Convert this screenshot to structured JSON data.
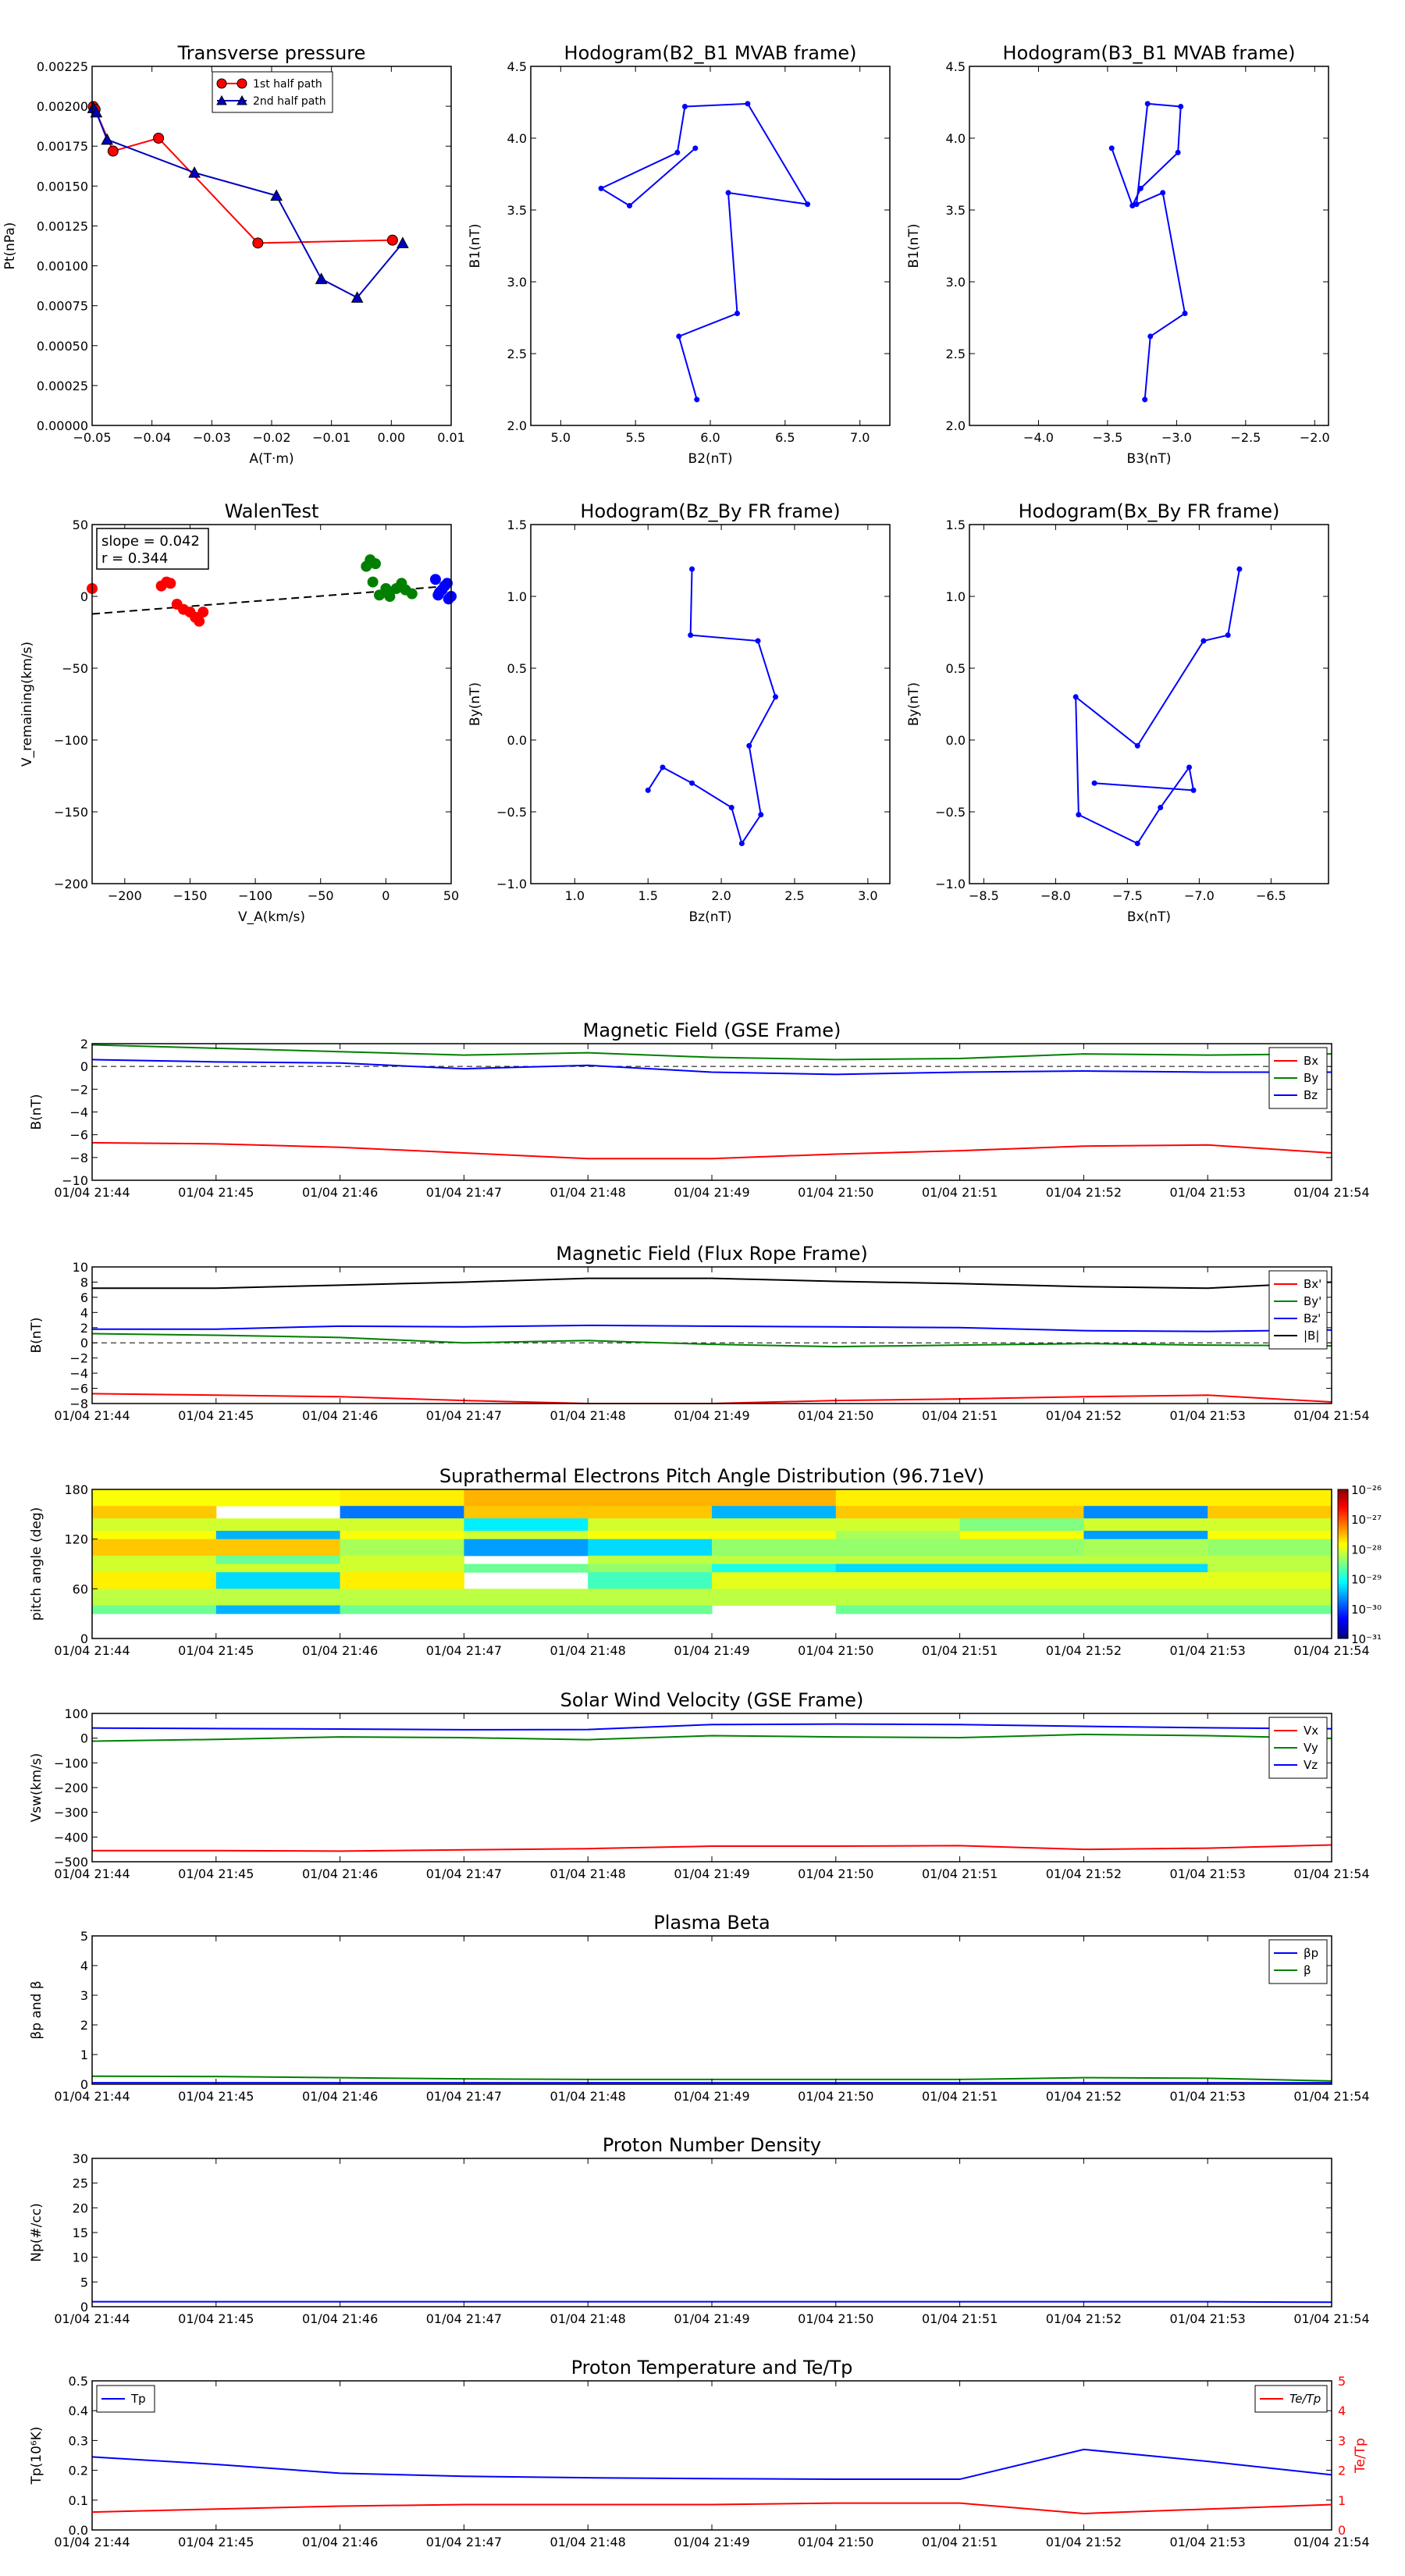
{
  "chart_data": [
    {
      "id": "tp",
      "type": "line",
      "title": "Transverse pressure",
      "xlabel": "A(T·m)",
      "ylabel": "Pt(nPa)",
      "xlim": [
        -0.05,
        0.01
      ],
      "ylim": [
        0,
        0.0025
      ],
      "xticks": [
        "−0.05",
        "−0.04",
        "−0.03",
        "−0.02",
        "−0.01",
        "0.00",
        "0.01"
      ],
      "yticks": [
        "0.00000",
        "0.00025",
        "0.00050",
        "0.00075",
        "0.00100",
        "0.00125",
        "0.00150",
        "0.00175",
        "0.00200",
        "0.00225"
      ],
      "legend_position": "upper-center",
      "series": [
        {
          "name": "1st half path",
          "color": "#ff0000",
          "marker": "circle",
          "x": [
            -0.0498,
            -0.0495,
            -0.0465,
            -0.0389,
            -0.0223,
            0.0002
          ],
          "y": [
            0.00222,
            0.0022,
            0.00191,
            0.002,
            0.00127,
            0.00129
          ]
        },
        {
          "name": "2nd half path",
          "color": "#0000bf",
          "marker": "triangle",
          "x": [
            -0.0498,
            -0.0493,
            -0.0475,
            -0.0329,
            -0.0192,
            -0.0117,
            -0.0057,
            0.0019
          ],
          "y": [
            0.00221,
            0.00218,
            0.00199,
            0.00176,
            0.0016,
            0.00102,
            0.00089,
            0.00127
          ]
        }
      ]
    },
    {
      "id": "h23",
      "type": "line",
      "title": "Hodogram(B2_B1 MVAB frame)",
      "xlabel": "B2(nT)",
      "ylabel": "B1(nT)",
      "xlim": [
        4.8,
        7.2
      ],
      "ylim": [
        2.0,
        4.5
      ],
      "xticks": [
        "5.0",
        "5.5",
        "6.0",
        "6.5",
        "7.0"
      ],
      "yticks": [
        "2.0",
        "2.5",
        "3.0",
        "3.5",
        "4.0",
        "4.5"
      ],
      "series": [
        {
          "color": "#0000ff",
          "x": [
            5.91,
            5.79,
            6.18,
            6.12,
            6.65,
            6.25,
            5.83,
            5.78,
            5.27,
            5.46,
            5.9
          ],
          "y": [
            2.18,
            2.62,
            2.78,
            3.62,
            3.54,
            4.24,
            4.22,
            3.9,
            3.65,
            3.53,
            3.93
          ]
        }
      ]
    },
    {
      "id": "h13",
      "type": "line",
      "title": "Hodogram(B3_B1 MVAB frame)",
      "xlabel": "B3(nT)",
      "ylabel": "B1(nT)",
      "xlim": [
        -4.5,
        -1.9
      ],
      "ylim": [
        2.0,
        4.5
      ],
      "xticks": [
        "−4.0",
        "−3.5",
        "−3.0",
        "−2.5",
        "−2.0"
      ],
      "yticks": [
        "2.0",
        "2.5",
        "3.0",
        "3.5",
        "4.0",
        "4.5"
      ],
      "series": [
        {
          "color": "#0000ff",
          "x": [
            -3.23,
            -3.19,
            -2.94,
            -3.1,
            -3.29,
            -3.21,
            -2.97,
            -2.99,
            -3.26,
            -3.32,
            -3.47
          ],
          "y": [
            2.18,
            2.62,
            2.78,
            3.62,
            3.54,
            4.24,
            4.22,
            3.9,
            3.65,
            3.53,
            3.93
          ]
        }
      ]
    },
    {
      "id": "walen",
      "type": "scatter",
      "title": "WalenTest",
      "xlabel": "V_A(km/s)",
      "ylabel": "V_remaining(km/s)",
      "xlim": [
        -225,
        50
      ],
      "ylim": [
        -225,
        50
      ],
      "xticks": [
        "−200",
        "−150",
        "−100",
        "−50",
        "0",
        "50"
      ],
      "yticks": [
        "−200",
        "−150",
        "−100",
        "−50",
        "0",
        "50"
      ],
      "annotations": [
        "slope = 0.042",
        "r = 0.344"
      ],
      "fit": {
        "slope": 0.042,
        "intercept": -1
      },
      "series": [
        {
          "color": "#ff0000",
          "x": [
            -225,
            -172,
            -168,
            -165,
            -160,
            -155,
            -150,
            -146,
            -143,
            -140
          ],
          "y": [
            1,
            3,
            6,
            5,
            -11,
            -15,
            -17,
            -21,
            -24,
            -17
          ]
        },
        {
          "color": "#008000",
          "x": [
            -15,
            -12,
            -8,
            -10,
            -5,
            0,
            3,
            8,
            12,
            15,
            20
          ],
          "y": [
            18,
            23,
            20,
            6,
            -4,
            1,
            -5,
            1,
            5,
            0,
            -3
          ]
        },
        {
          "color": "#0000ff",
          "x": [
            38,
            41,
            45,
            48,
            40,
            47,
            43,
            50
          ],
          "y": [
            8,
            -2,
            3,
            -7,
            -4,
            5,
            0,
            -5
          ]
        }
      ]
    },
    {
      "id": "fr_zy",
      "type": "line",
      "title": "Hodogram(Bz_By FR frame)",
      "xlabel": "Bz(nT)",
      "ylabel": "By(nT)",
      "xlim": [
        0.7,
        3.15
      ],
      "ylim": [
        -1.0,
        1.5
      ],
      "xticks": [
        "1.0",
        "1.5",
        "2.0",
        "2.5",
        "3.0"
      ],
      "yticks": [
        "−1.0",
        "−0.5",
        "0.0",
        "0.5",
        "1.0",
        "1.5"
      ],
      "series": [
        {
          "color": "#0000ff",
          "x": [
            1.8,
            1.79,
            2.25,
            2.37,
            2.19,
            2.27,
            2.14,
            2.07,
            1.8,
            1.6,
            1.5
          ],
          "y": [
            1.19,
            0.73,
            0.69,
            0.3,
            -0.04,
            -0.52,
            -0.72,
            -0.47,
            -0.3,
            -0.19,
            -0.35
          ]
        }
      ]
    },
    {
      "id": "fr_xy",
      "type": "line",
      "title": "Hodogram(Bx_By FR frame)",
      "xlabel": "Bx(nT)",
      "ylabel": "By(nT)",
      "xlim": [
        -8.6,
        -6.1
      ],
      "ylim": [
        -1.0,
        1.5
      ],
      "xticks": [
        "−8.5",
        "−8.0",
        "−7.5",
        "−7.0",
        "−6.5"
      ],
      "yticks": [
        "−1.0",
        "−0.5",
        "0.0",
        "0.5",
        "1.0",
        "1.5"
      ],
      "series": [
        {
          "color": "#0000ff",
          "x": [
            -6.72,
            -6.8,
            -6.97,
            -7.43,
            -7.86,
            -7.84,
            -7.43,
            -7.27,
            -7.07,
            -7.04,
            -7.73
          ],
          "y": [
            1.19,
            0.73,
            0.69,
            -0.04,
            0.3,
            -0.52,
            -0.72,
            -0.47,
            -0.19,
            -0.35,
            -0.3
          ]
        }
      ]
    },
    {
      "id": "mf",
      "type": "line",
      "title": "Magnetic Field (GSE Frame)",
      "xlabel": "",
      "ylabel": "B(nT)",
      "ylim": [
        -10,
        2
      ],
      "yticks": [
        "−10",
        "−8",
        "−6",
        "−4",
        "−2",
        "0",
        "2"
      ],
      "zero_line": true,
      "legend_position": "right",
      "series": [
        {
          "name": "Bx",
          "color": "#ff0000",
          "values": [
            -6.7,
            -6.8,
            -7.1,
            -7.6,
            -8.1,
            -8.1,
            -7.7,
            -7.4,
            -7.0,
            -6.9,
            -7.6
          ]
        },
        {
          "name": "By",
          "color": "#008000",
          "values": [
            1.9,
            1.6,
            1.3,
            1.0,
            1.2,
            0.8,
            0.6,
            0.7,
            1.1,
            1.0,
            1.1
          ]
        },
        {
          "name": "Bz",
          "color": "#0000ff",
          "values": [
            0.6,
            0.4,
            0.3,
            -0.2,
            0.1,
            -0.5,
            -0.7,
            -0.5,
            -0.4,
            -0.5,
            -0.5
          ]
        }
      ]
    },
    {
      "id": "mffr",
      "type": "line",
      "title": "Magnetic Field (Flux Rope Frame)",
      "xlabel": "",
      "ylabel": "B(nT)",
      "ylim": [
        -8,
        10
      ],
      "yticks": [
        "−8",
        "−6",
        "−4",
        "−2",
        "0",
        "2",
        "4",
        "6",
        "8",
        "10"
      ],
      "zero_line": true,
      "legend_position": "right",
      "series": [
        {
          "name": "Bx'",
          "color": "#ff0000",
          "values": [
            -6.7,
            -6.9,
            -7.1,
            -7.6,
            -8.0,
            -8.0,
            -7.6,
            -7.4,
            -7.1,
            -6.9,
            -7.8
          ]
        },
        {
          "name": "By'",
          "color": "#008000",
          "values": [
            1.2,
            1.0,
            0.7,
            0.0,
            0.3,
            -0.2,
            -0.5,
            -0.3,
            -0.1,
            -0.3,
            -0.4
          ]
        },
        {
          "name": "Bz'",
          "color": "#0000ff",
          "values": [
            1.8,
            1.8,
            2.2,
            2.1,
            2.3,
            2.2,
            2.1,
            2.0,
            1.6,
            1.5,
            1.7
          ]
        },
        {
          "name": "|B|",
          "color": "#000000",
          "values": [
            7.2,
            7.2,
            7.6,
            8.0,
            8.5,
            8.5,
            8.1,
            7.8,
            7.4,
            7.2,
            8.0
          ]
        }
      ]
    },
    {
      "id": "pad",
      "type": "heatmap",
      "title": "Suprathermal Electrons Pitch Angle Distribution (96.71eV)",
      "xlabel": "",
      "ylabel": "pitch angle (deg)",
      "ylim": [
        0,
        180
      ],
      "yticks": [
        "0",
        "60",
        "120",
        "180"
      ],
      "colorbar": {
        "ticks": [
          "10⁻³¹",
          "10⁻³⁰",
          "10⁻²⁹",
          "10⁻²⁸",
          "10⁻²⁷",
          "10⁻²⁶"
        ],
        "range": [
          -31,
          -26
        ]
      },
      "bin_edges": [
        30,
        40,
        60,
        80,
        90,
        100,
        120,
        130,
        145,
        160,
        180
      ],
      "rows_top_to_bottom": [
        [
          -27.9,
          -27.9,
          -27.8,
          -27.5,
          -27.5,
          -27.5,
          -27.8,
          -27.8,
          -27.8,
          -27.8
        ],
        [
          -27.6,
          null,
          -29.8,
          -27.6,
          -27.6,
          -29.5,
          -27.6,
          -27.6,
          -29.7,
          -27.6
        ],
        [
          -28.1,
          -28.1,
          -28.1,
          -29.2,
          -28.1,
          -28.1,
          -28.1,
          -28.5,
          -28.1,
          -28.1
        ],
        [
          -27.9,
          -29.5,
          -27.9,
          -28.1,
          -27.9,
          -27.9,
          -28.3,
          -27.9,
          -29.6,
          -27.9
        ],
        [
          -27.6,
          -27.6,
          -28.3,
          -29.6,
          -29.3,
          -28.4,
          -28.4,
          -28.4,
          -28.3,
          -28.4
        ],
        [
          -28.1,
          -28.6,
          -28.1,
          null,
          -28.2,
          -28.2,
          -28.2,
          -28.2,
          -28.2,
          -28.2
        ],
        [
          -28.1,
          -28.1,
          -28.1,
          -28.6,
          -28.4,
          -29.0,
          -29.3,
          -29.3,
          -29.3,
          -28.2
        ],
        [
          -27.8,
          -29.3,
          -27.8,
          null,
          -28.8,
          -28.0,
          -28.0,
          -28.0,
          -28.0,
          -28.0
        ],
        [
          -28.2,
          -28.2,
          -28.2,
          -28.2,
          -28.2,
          -28.2,
          -28.2,
          -28.2,
          -28.2,
          -28.2
        ],
        [
          -28.6,
          -29.5,
          -28.6,
          -28.6,
          -28.6,
          null,
          -28.6,
          -28.6,
          -28.6,
          -28.6
        ]
      ]
    },
    {
      "id": "sw",
      "type": "line",
      "title": "Solar Wind Velocity (GSE Frame)",
      "xlabel": "",
      "ylabel": "Vsw(km/s)",
      "ylim": [
        -500,
        100
      ],
      "yticks": [
        "−500",
        "−400",
        "−300",
        "−200",
        "−100",
        "0",
        "100"
      ],
      "legend_position": "right",
      "series": [
        {
          "name": "Vx",
          "color": "#ff0000",
          "values": [
            -455,
            -455,
            -457,
            -452,
            -447,
            -437,
            -437,
            -435,
            -450,
            -445,
            -432
          ]
        },
        {
          "name": "Vy",
          "color": "#008000",
          "values": [
            -12,
            -5,
            5,
            2,
            -6,
            10,
            5,
            2,
            15,
            10,
            -1
          ]
        },
        {
          "name": "Vz",
          "color": "#0000ff",
          "values": [
            41,
            39,
            37,
            34,
            35,
            55,
            57,
            55,
            48,
            42,
            38
          ]
        }
      ]
    },
    {
      "id": "beta",
      "type": "line",
      "title": "Plasma Beta",
      "xlabel": "",
      "ylabel": "βp and β",
      "ylim": [
        0,
        5
      ],
      "yticks": [
        "0",
        "1",
        "2",
        "3",
        "4",
        "5"
      ],
      "legend_position": "right",
      "series": [
        {
          "name": "βp",
          "color": "#0000ff",
          "values": [
            0.05,
            0.05,
            0.05,
            0.05,
            0.05,
            0.05,
            0.05,
            0.05,
            0.05,
            0.05,
            0.05
          ]
        },
        {
          "name": "β",
          "color": "#008000",
          "values": [
            0.27,
            0.26,
            0.22,
            0.18,
            0.16,
            0.16,
            0.16,
            0.16,
            0.22,
            0.2,
            0.11
          ]
        }
      ]
    },
    {
      "id": "np",
      "type": "line",
      "title": "Proton Number Density",
      "xlabel": "",
      "ylabel": "Np(#/cc)",
      "ylim": [
        0,
        30
      ],
      "yticks": [
        "0",
        "5",
        "10",
        "15",
        "20",
        "25",
        "30"
      ],
      "series": [
        {
          "name": "Np",
          "color": "#0000ff",
          "values": [
            1.0,
            1.0,
            1.0,
            1.0,
            1.0,
            1.0,
            1.0,
            1.0,
            1.0,
            1.0,
            0.9
          ]
        }
      ]
    },
    {
      "id": "tpx",
      "type": "line",
      "title": "Proton Temperature and Te/Tp",
      "xlabel": "",
      "ylabel": "Tp(10⁶K)",
      "ylabel_right": "Te/Tp",
      "ylim": [
        0,
        0.5
      ],
      "ylim_right": [
        0,
        5
      ],
      "yticks": [
        "0.0",
        "0.1",
        "0.2",
        "0.3",
        "0.4",
        "0.5"
      ],
      "yticks_right": [
        "0",
        "1",
        "2",
        "3",
        "4",
        "5"
      ],
      "series": [
        {
          "name": "Tp",
          "color": "#0000ff",
          "axis": "left",
          "values": [
            0.245,
            0.22,
            0.19,
            0.18,
            0.175,
            0.172,
            0.17,
            0.17,
            0.27,
            0.23,
            0.185
          ]
        },
        {
          "name": "Te/Tp",
          "color": "#ff0000",
          "axis": "right",
          "values": [
            0.6,
            0.7,
            0.8,
            0.85,
            0.85,
            0.85,
            0.9,
            0.9,
            0.55,
            0.7,
            0.85
          ]
        }
      ]
    }
  ],
  "time_axis": {
    "tick_labels": [
      "01/04 21:44",
      "01/04 21:45",
      "01/04 21:46",
      "01/04 21:47",
      "01/04 21:48",
      "01/04 21:49",
      "01/04 21:50",
      "01/04 21:51",
      "01/04 21:52",
      "01/04 21:53",
      "01/04 21:54"
    ],
    "sample_times": [
      "21:44",
      "21:45",
      "21:46",
      "21:47",
      "21:48",
      "21:49",
      "21:50",
      "21:51",
      "21:52",
      "21:53",
      "21:54"
    ]
  }
}
